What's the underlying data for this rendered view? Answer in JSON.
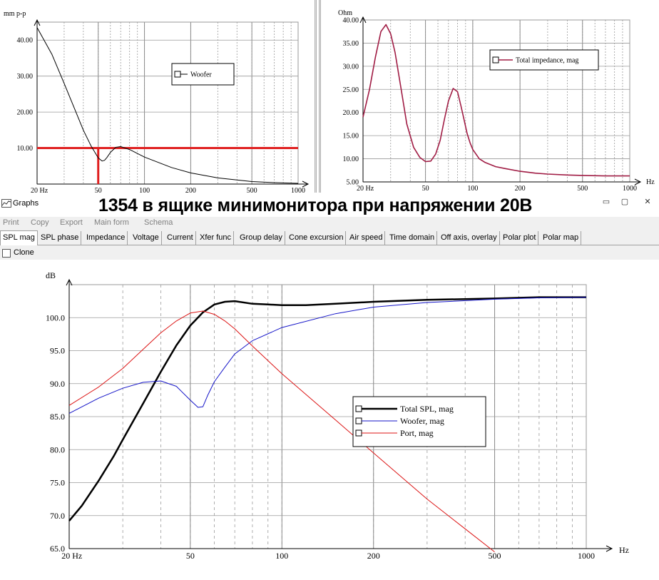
{
  "window": {
    "title": "Graphs",
    "banner": "1354 в ящике минимонитора при напряжении 20В"
  },
  "menu": [
    "Print",
    "Copy",
    "Export",
    "Main form",
    "Schema"
  ],
  "tabs": [
    "SPL mag",
    "SPL phase",
    "Impedance",
    "Voltage",
    "Current",
    "Xfer func",
    "Group delay",
    "Cone excursion",
    "Air speed",
    "Time domain",
    "Off axis, overlay",
    "Polar plot",
    "Polar map"
  ],
  "active_tab": "SPL mag",
  "clone": {
    "label": "Clone",
    "checked": false
  },
  "colors": {
    "black": "#000000",
    "blue": "#1414c8",
    "red": "#dc1414",
    "impedance": "#a01c44",
    "marker": "#e02020"
  },
  "chart_data": [
    {
      "type": "line",
      "ylabel": "mm p-p",
      "xscale": "log",
      "xlim": [
        20,
        1000
      ],
      "ylim": [
        0,
        45
      ],
      "x_ticks": [
        "20 Hz",
        "50",
        "100",
        "200",
        "500",
        "1000"
      ],
      "y_ticks": [
        "10.00",
        "20.00",
        "30.00",
        "40.00"
      ],
      "grid": true,
      "legend_position": "top-right",
      "series": [
        {
          "name": "Woofer",
          "color": "#000000",
          "x": [
            20,
            25,
            30,
            35,
            40,
            45,
            50,
            53,
            55,
            57,
            60,
            65,
            70,
            80,
            100,
            150,
            200,
            300,
            500,
            700,
            1000
          ],
          "y": [
            43.5,
            36,
            28,
            21,
            15,
            10.5,
            7.3,
            6.4,
            6.6,
            7.4,
            8.8,
            10.2,
            10.4,
            9.6,
            7.5,
            4.6,
            3.1,
            1.7,
            0.7,
            0.4,
            0.2
          ]
        }
      ],
      "marker_lines": {
        "y": 10,
        "x": 50
      }
    },
    {
      "type": "line",
      "ylabel": "Ohm",
      "xlabel": "Hz",
      "xscale": "log",
      "xlim": [
        20,
        1000
      ],
      "ylim": [
        5,
        40
      ],
      "x_ticks": [
        "20 Hz",
        "50",
        "100",
        "200",
        "500",
        "1000"
      ],
      "y_ticks": [
        "5.00",
        "10.00",
        "15.00",
        "20.00",
        "25.00",
        "30.00",
        "35.00",
        "40.00"
      ],
      "grid": true,
      "legend_position": "top-right",
      "series": [
        {
          "name": "Total impedance, mag",
          "color": "#a01c44",
          "x": [
            20,
            22,
            24,
            26,
            28,
            30,
            32,
            35,
            38,
            42,
            46,
            50,
            54,
            58,
            62,
            66,
            70,
            75,
            80,
            84,
            88,
            92,
            96,
            100,
            110,
            120,
            140,
            160,
            200,
            250,
            300,
            400,
            500,
            700,
            1000
          ],
          "y": [
            19,
            25,
            32,
            37.5,
            39,
            37,
            33,
            25,
            17.5,
            12.5,
            10.3,
            9.4,
            9.5,
            11,
            14,
            18.5,
            22.5,
            25.2,
            24.5,
            21.5,
            18.5,
            15.5,
            13.5,
            12,
            10,
            9.2,
            8.3,
            7.9,
            7.3,
            6.9,
            6.7,
            6.5,
            6.4,
            6.3,
            6.3
          ]
        }
      ]
    },
    {
      "type": "line",
      "ylabel": "dB",
      "xlabel": "Hz",
      "xscale": "log",
      "xlim": [
        20,
        1000
      ],
      "ylim": [
        65,
        105
      ],
      "x_ticks": [
        "20 Hz",
        "50",
        "100",
        "200",
        "500",
        "1000"
      ],
      "y_ticks": [
        "65.0",
        "70.0",
        "75.0",
        "80.0",
        "85.0",
        "90.0",
        "95.0",
        "100.0"
      ],
      "grid": true,
      "legend_position": "center-right",
      "series": [
        {
          "name": "Total SPL, mag",
          "color": "#000000",
          "x": [
            20,
            22,
            25,
            28,
            30,
            35,
            40,
            45,
            50,
            55,
            60,
            65,
            70,
            80,
            90,
            100,
            120,
            150,
            200,
            300,
            500,
            700,
            1000
          ],
          "y": [
            69.2,
            71.5,
            75.3,
            79,
            81.5,
            87,
            91.8,
            95.8,
            98.8,
            100.8,
            102,
            102.4,
            102.5,
            102.1,
            102,
            101.9,
            101.9,
            102.1,
            102.4,
            102.7,
            102.9,
            103.1,
            103.1
          ]
        },
        {
          "name": "Woofer, mag",
          "color": "#1414c8",
          "x": [
            20,
            25,
            30,
            35,
            40,
            45,
            50,
            53,
            55,
            57,
            60,
            65,
            70,
            80,
            100,
            150,
            200,
            300,
            500,
            700,
            1000
          ],
          "y": [
            85.5,
            87.8,
            89.3,
            90.2,
            90.4,
            89.6,
            87.5,
            86.4,
            86.5,
            88.2,
            90.3,
            92.5,
            94.5,
            96.5,
            98.5,
            100.6,
            101.6,
            102.3,
            102.8,
            103,
            103.1
          ]
        },
        {
          "name": "Port, mag",
          "color": "#dc1414",
          "x": [
            20,
            25,
            30,
            35,
            40,
            45,
            50,
            55,
            60,
            65,
            70,
            80,
            100,
            150,
            200,
            300,
            400,
            500
          ],
          "y": [
            86.7,
            89.5,
            92.3,
            95.2,
            97.7,
            99.5,
            100.7,
            101,
            100.5,
            99.5,
            98.3,
            95.7,
            91.5,
            84.5,
            79.5,
            72.5,
            68,
            64.5
          ]
        }
      ]
    }
  ]
}
